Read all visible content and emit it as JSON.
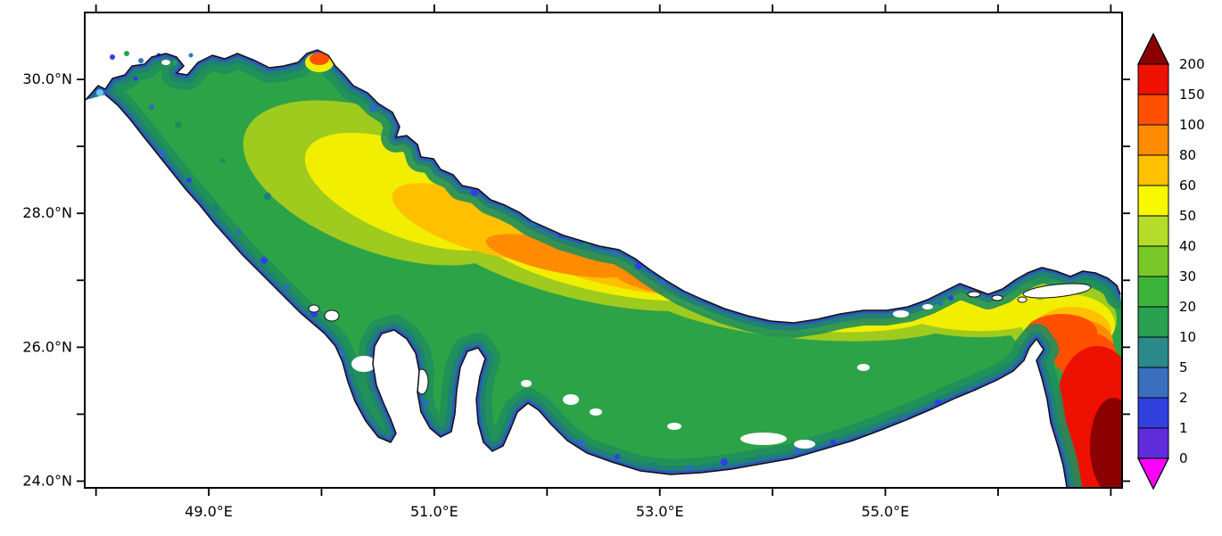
{
  "figure": {
    "title": "",
    "kind": "filled-contour geographic heatmap of the Persian Gulf and Strait of Hormuz"
  },
  "chart_data": {
    "type": "heatmap",
    "title": "",
    "description": "Filled contour map over the Persian Gulf region (approx 48-57E, 24-31N). Unlabeled quantity shown with a 0-200 nonlinear color scale: coastal fringes are blue/teal (0-5), most of the basin is green (10-30), an elongated yellow-to-orange band (50-100) runs along the central axis from the northwest toward the Strait of Hormuz, an orange-red band (100-150) lies along the deep channel south of the Iranian coast, and the Gulf of Oman in the southeast corner reaches red to dark red (150-200+). Scattered white patches indicate no data; Qatar and Bahrain appear as land on the southern coast.",
    "grid": false,
    "legend_position": "right",
    "x_range": [
      47.9,
      57.1
    ],
    "y_range": [
      23.9,
      31.0
    ],
    "x_axis": {
      "tick_lons": [
        48,
        49,
        50,
        51,
        52,
        53,
        54,
        55,
        56,
        57
      ],
      "labeled_ticks": [
        {
          "lon": 49,
          "label": "49.0°E"
        },
        {
          "lon": 51,
          "label": "51.0°E"
        },
        {
          "lon": 53,
          "label": "53.0°E"
        },
        {
          "lon": 55,
          "label": "55.0°E"
        }
      ]
    },
    "y_axis": {
      "tick_lats": [
        24,
        25,
        26,
        27,
        28,
        29,
        30
      ],
      "labeled_ticks": [
        {
          "lat": 30,
          "label": "30.0°N"
        },
        {
          "lat": 28,
          "label": "28.0°N"
        },
        {
          "lat": 26,
          "label": "26.0°N"
        },
        {
          "lat": 24,
          "label": "24.0°N"
        }
      ]
    },
    "colorbar": {
      "labels_top_to_bottom": [
        "200",
        "150",
        "100",
        "80",
        "60",
        "50",
        "40",
        "30",
        "20",
        "10",
        "5",
        "2",
        "1",
        "0"
      ],
      "levels": [
        0,
        1,
        2,
        5,
        10,
        20,
        30,
        40,
        50,
        60,
        80,
        100,
        150,
        200
      ],
      "segment_colors_bottom_to_top": [
        "#5F2CDC",
        "#3240E0",
        "#3A6EBE",
        "#2A8A8A",
        "#28A050",
        "#3CB43C",
        "#78C828",
        "#B4DC28",
        "#F8F800",
        "#FFC000",
        "#FF8C00",
        "#FF5000",
        "#EE1000"
      ],
      "over_color": "#8B0000",
      "under_color": "#FF00FF"
    },
    "regions": [
      {
        "area": "coastal fringes (all shores)",
        "approx_value": "0-5"
      },
      {
        "area": "northwestern basin interior",
        "approx_value": "10-30"
      },
      {
        "area": "central axis band, ~49.5E-53E",
        "approx_value": "50-80"
      },
      {
        "area": "deep channel south of Iranian coast, ~52E-55E",
        "approx_value": "80-150"
      },
      {
        "area": "Strait of Hormuz",
        "approx_value": "100-150"
      },
      {
        "area": "Gulf of Oman, southeast corner",
        "approx_value": "150-200+"
      },
      {
        "area": "bays west and east of Qatar",
        "approx_value": "0-10 with local 50-80 streak"
      }
    ]
  }
}
